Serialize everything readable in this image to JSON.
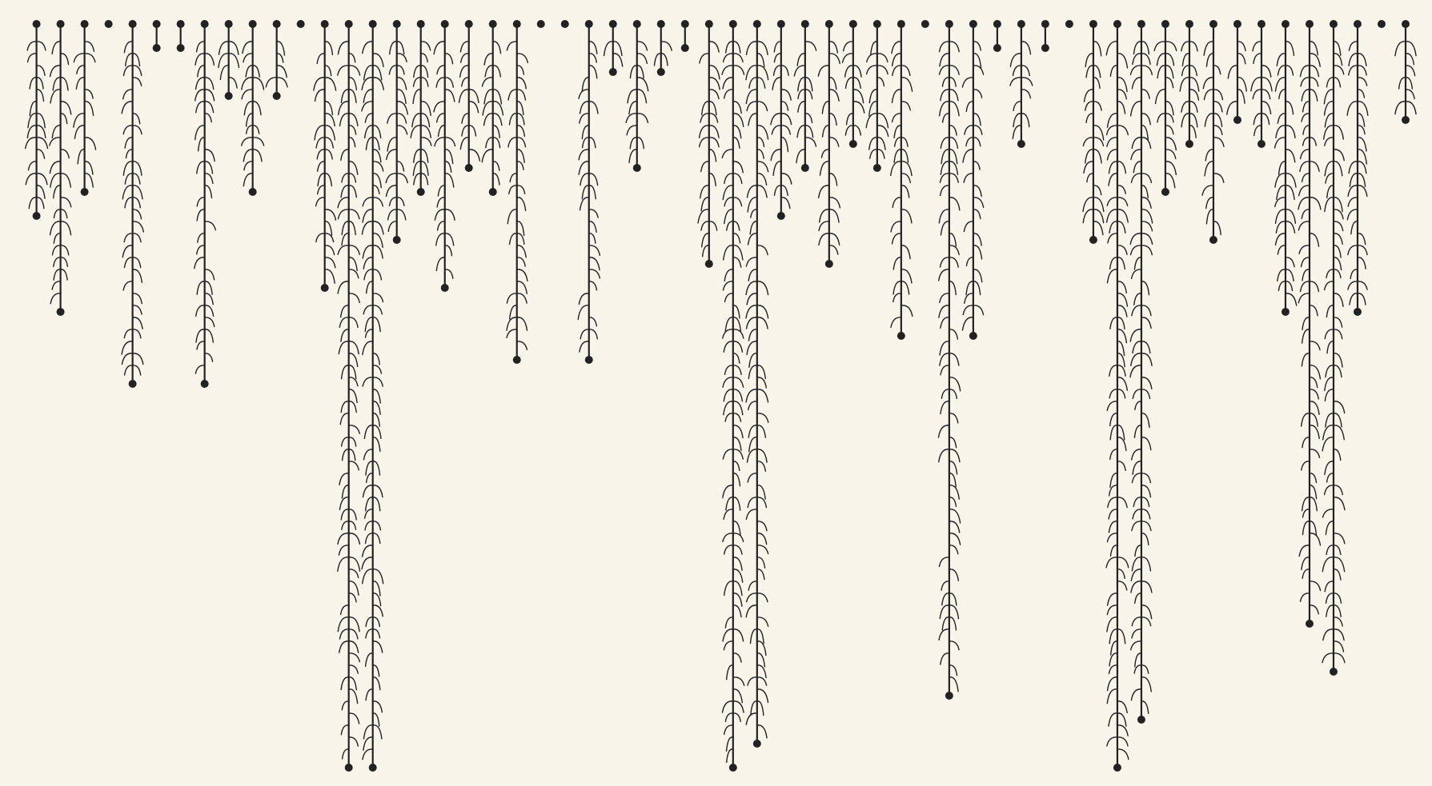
{
  "chart_data": {
    "type": "vine",
    "values": [
      8,
      12,
      7,
      0,
      15,
      1,
      1,
      15,
      3,
      7,
      3,
      0,
      11,
      31,
      31,
      9,
      7,
      11,
      6,
      7,
      14,
      0,
      0,
      14,
      2,
      6,
      2,
      1,
      10,
      31,
      30,
      8,
      6,
      10,
      5,
      6,
      13,
      0,
      28,
      13,
      1,
      5,
      1,
      0,
      9,
      31,
      29,
      7,
      5,
      9,
      4,
      5,
      12,
      25,
      27,
      12,
      0,
      4
    ],
    "color": "#222222"
  }
}
